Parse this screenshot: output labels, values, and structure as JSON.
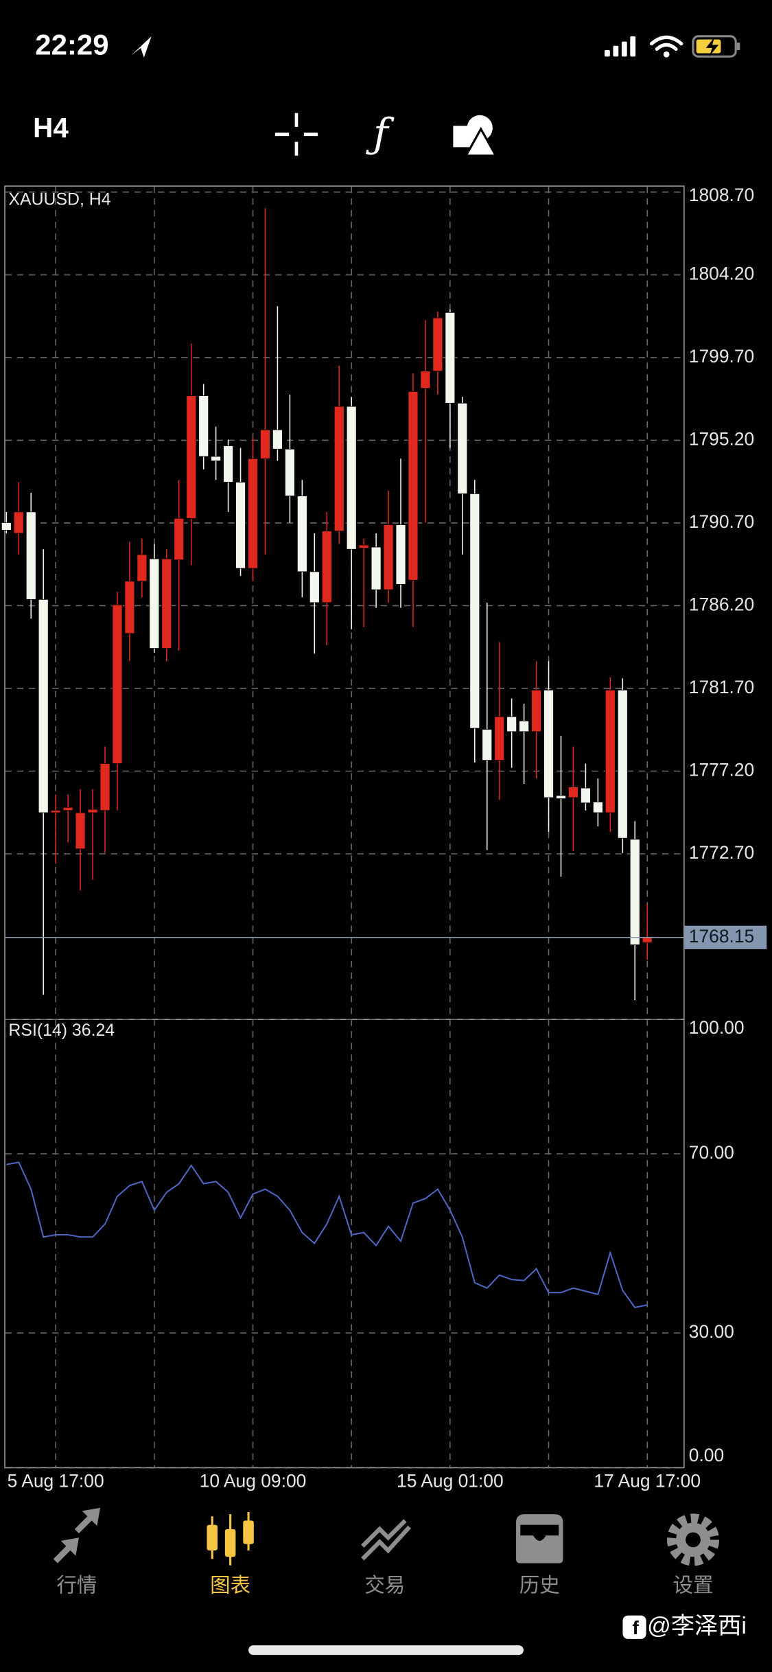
{
  "status_bar": {
    "time": "22:29"
  },
  "toolbar": {
    "timeframe": "H4"
  },
  "chart_data": [
    {
      "type": "candlestick",
      "title": "XAUUSD, H4",
      "categories": [
        null,
        null,
        null,
        null,
        "5 Aug 17:00",
        null,
        null,
        null,
        null,
        null,
        null,
        null,
        null,
        null,
        null,
        null,
        null,
        null,
        null,
        null,
        "10 Aug 09:00",
        null,
        null,
        null,
        null,
        null,
        null,
        null,
        null,
        null,
        null,
        null,
        null,
        null,
        null,
        null,
        "15 Aug 01:00",
        null,
        null,
        null,
        null,
        null,
        null,
        null,
        null,
        null,
        null,
        null,
        null,
        null,
        null,
        null,
        "17 Aug 17:00"
      ],
      "open": [
        1790.72,
        1790.14,
        1791.3,
        1786.54,
        1774.94,
        1775.06,
        1772.97,
        1774.94,
        1775.06,
        1777.61,
        1784.69,
        1787.53,
        1788.75,
        1783.88,
        1788.69,
        1790.95,
        1797.62,
        1794.32,
        1794.9,
        1792.92,
        1788.23,
        1794.2,
        1795.77,
        1794.72,
        1792.17,
        1788.05,
        1786.37,
        1790.26,
        1797.04,
        1789.33,
        1789.39,
        1787.07,
        1790.6,
        1787.59,
        1798.03,
        1798.96,
        1802.15,
        1797.22,
        1792.29,
        1779.47,
        1777.79,
        1780.16,
        1779.93,
        1779.35,
        1781.61,
        1775.87,
        1775.76,
        1776.28,
        1775.52,
        1774.94,
        1781.61,
        1773.49,
        1767.87
      ],
      "high": [
        1791.3,
        1792.92,
        1792.34,
        1789.27,
        1775.93,
        1775.93,
        1776.22,
        1776.22,
        1778.54,
        1786.95,
        1789.68,
        1789.85,
        1789.56,
        1789.27,
        1793.04,
        1800.46,
        1798.26,
        1795.94,
        1795.24,
        1794.78,
        1795.36,
        1807.83,
        1802.49,
        1797.68,
        1793.04,
        1790.14,
        1791.3,
        1799.25,
        1797.56,
        1789.85,
        1790.14,
        1792.46,
        1794.2,
        1798.84,
        1801.74,
        1802.2,
        1802.32,
        1797.56,
        1793.04,
        1786.37,
        1784.22,
        1781.15,
        1780.86,
        1783.18,
        1783.18,
        1779.12,
        1778.54,
        1777.61,
        1776.8,
        1782.31,
        1782.25,
        1774.48,
        1769.96
      ],
      "low": [
        1790.14,
        1788.98,
        1785.5,
        1765.03,
        1772.16,
        1773.32,
        1770.71,
        1771.29,
        1772.74,
        1775.06,
        1783.18,
        1786.66,
        1783.64,
        1783.18,
        1783.76,
        1788.4,
        1793.62,
        1793.04,
        1791.3,
        1787.82,
        1787.53,
        1788.98,
        1794.08,
        1790.72,
        1786.66,
        1783.59,
        1784.05,
        1789.56,
        1784.92,
        1785.04,
        1786.08,
        1786.37,
        1786.08,
        1785.04,
        1790.72,
        1797.68,
        1794.78,
        1788.98,
        1777.67,
        1772.91,
        1775.64,
        1777.38,
        1776.51,
        1776.8,
        1773.9,
        1771.46,
        1772.86,
        1775.06,
        1774.19,
        1773.9,
        1772.74,
        1764.74,
        1766.94
      ],
      "close": [
        1790.31,
        1791.3,
        1786.54,
        1774.94,
        1775.06,
        1775.23,
        1774.94,
        1775.12,
        1777.61,
        1786.25,
        1787.53,
        1788.98,
        1783.88,
        1788.75,
        1790.95,
        1797.62,
        1794.32,
        1794.08,
        1792.92,
        1788.23,
        1794.2,
        1795.77,
        1794.72,
        1792.17,
        1788.05,
        1786.37,
        1790.26,
        1797.04,
        1789.27,
        1789.5,
        1787.07,
        1790.6,
        1787.36,
        1797.85,
        1798.96,
        1801.86,
        1797.22,
        1792.29,
        1779.53,
        1777.79,
        1780.16,
        1779.35,
        1779.35,
        1781.61,
        1775.76,
        1775.7,
        1776.34,
        1775.47,
        1774.94,
        1781.61,
        1773.55,
        1767.75,
        1768.15
      ],
      "up_color": "#e0281f",
      "down_color": "#f2f8ee",
      "ylim": [
        1763.75,
        1809.0
      ],
      "yticks": [
        {
          "value": 1808.7,
          "label": "1808.70"
        },
        {
          "value": 1804.2,
          "label": "1804.20"
        },
        {
          "value": 1799.7,
          "label": "1799.70"
        },
        {
          "value": 1795.2,
          "label": "1795.20"
        },
        {
          "value": 1790.7,
          "label": "1790.70"
        },
        {
          "value": 1786.2,
          "label": "1786.20"
        },
        {
          "value": 1781.7,
          "label": "1781.70"
        },
        {
          "value": 1777.2,
          "label": "1777.20"
        },
        {
          "value": 1772.7,
          "label": "1772.70"
        }
      ],
      "grid": true,
      "last_price": {
        "value": 1768.15,
        "label": "1768.15"
      }
    },
    {
      "type": "line",
      "title": "RSI(14) 36.24",
      "values": [
        67.6,
        68.1,
        62.1,
        51.4,
        51.9,
        51.9,
        51.4,
        51.4,
        54.3,
        60.5,
        62.9,
        63.8,
        57.4,
        61.4,
        63.3,
        67.4,
        63.3,
        63.8,
        61.4,
        55.7,
        61.0,
        62.1,
        60.5,
        57.4,
        52.4,
        50.0,
        54.3,
        60.5,
        51.9,
        52.4,
        49.5,
        53.8,
        50.5,
        59.0,
        60.0,
        62.1,
        57.4,
        51.4,
        41.2,
        40.0,
        42.9,
        41.9,
        41.7,
        44.3,
        39.0,
        39.0,
        40.0,
        39.3,
        38.6,
        47.9,
        39.5,
        35.7,
        36.24
      ],
      "color": "#4f66c4",
      "ylim": [
        0,
        100
      ],
      "yticks": [
        {
          "value": 100,
          "label": "100.00"
        },
        {
          "value": 70,
          "label": "70.00"
        },
        {
          "value": 30,
          "label": "30.00"
        },
        {
          "value": 0,
          "label": "0.00"
        }
      ],
      "grid": true
    }
  ],
  "tab_bar": {
    "tabs": [
      "行情",
      "图表",
      "交易",
      "历史",
      "设置"
    ],
    "active": 1,
    "active_color": "#f6c544",
    "color": "#8e8e8e"
  },
  "watermark": "@李泽西i"
}
